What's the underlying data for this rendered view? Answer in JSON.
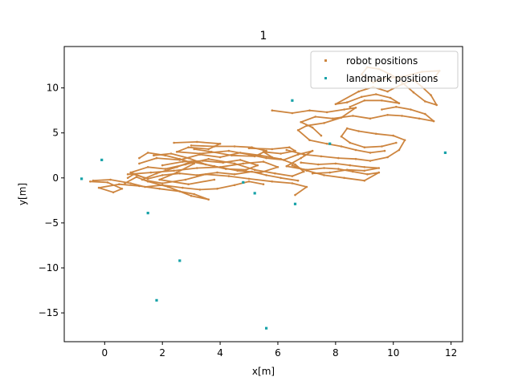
{
  "chart_data": {
    "type": "scatter",
    "title": "1",
    "xlabel": "x[m]",
    "ylabel": "y[m]",
    "xlim": [
      -1.4,
      12.4
    ],
    "ylim": [
      -18.2,
      14.6
    ],
    "xticks": [
      0,
      2,
      4,
      6,
      8,
      10,
      12
    ],
    "yticks": [
      -15,
      -10,
      -5,
      0,
      5,
      10
    ],
    "grid": false,
    "legend_position": "top-right",
    "series": [
      {
        "name": "robot positions",
        "color": "#cd853f",
        "marker": "dot",
        "paths": [
          [
            [
              -0.5,
              -0.4
            ],
            [
              0.1,
              -0.5
            ],
            [
              0.6,
              -1.2
            ],
            [
              0.3,
              -1.6
            ],
            [
              -0.2,
              -1.1
            ],
            [
              0.5,
              -0.7
            ],
            [
              1.2,
              -0.9
            ],
            [
              1.9,
              -1.2
            ],
            [
              2.6,
              -1.5
            ],
            [
              3.1,
              -1.8
            ],
            [
              3.6,
              -2.4
            ],
            [
              3.0,
              -2.0
            ],
            [
              2.2,
              -1.0
            ],
            [
              1.5,
              -0.4
            ],
            [
              1.1,
              0.1
            ],
            [
              0.7,
              -0.6
            ]
          ],
          [
            [
              0.8,
              0.4
            ],
            [
              1.6,
              0.6
            ],
            [
              2.4,
              0.8
            ],
            [
              3.2,
              1.1
            ],
            [
              4.0,
              1.2
            ],
            [
              4.8,
              1.6
            ],
            [
              5.5,
              1.8
            ],
            [
              6.0,
              1.2
            ],
            [
              5.4,
              0.6
            ],
            [
              4.6,
              0.8
            ],
            [
              3.8,
              1.3
            ],
            [
              3.0,
              1.8
            ],
            [
              2.5,
              1.2
            ],
            [
              1.8,
              0.5
            ],
            [
              1.3,
              -0.2
            ],
            [
              2.0,
              -0.6
            ],
            [
              2.8,
              -0.2
            ],
            [
              3.5,
              0.4
            ],
            [
              4.3,
              0.2
            ],
            [
              5.0,
              -0.1
            ],
            [
              5.8,
              -0.4
            ],
            [
              6.5,
              -0.6
            ],
            [
              7.0,
              -1.0
            ],
            [
              6.6,
              -1.9
            ]
          ],
          [
            [
              1.2,
              1.6
            ],
            [
              1.8,
              2.2
            ],
            [
              2.6,
              2.0
            ],
            [
              3.3,
              2.6
            ],
            [
              4.0,
              2.3
            ],
            [
              4.7,
              2.8
            ],
            [
              5.4,
              2.5
            ],
            [
              6.1,
              2.1
            ],
            [
              6.6,
              1.5
            ],
            [
              6.9,
              0.7
            ],
            [
              6.5,
              0.2
            ],
            [
              5.9,
              0.5
            ],
            [
              5.2,
              0.9
            ],
            [
              4.5,
              1.6
            ],
            [
              3.6,
              2.1
            ],
            [
              2.8,
              1.5
            ],
            [
              2.1,
              1.0
            ],
            [
              1.5,
              1.2
            ],
            [
              0.9,
              0.6
            ],
            [
              1.4,
              0.0
            ]
          ],
          [
            [
              1.2,
              2.2
            ],
            [
              1.5,
              2.8
            ],
            [
              2.1,
              2.5
            ],
            [
              2.6,
              2.1
            ],
            [
              3.1,
              1.6
            ],
            [
              2.5,
              0.6
            ],
            [
              1.9,
              -0.2
            ],
            [
              2.9,
              -0.7
            ],
            [
              3.8,
              -0.2
            ]
          ],
          [
            [
              2.4,
              3.9
            ],
            [
              3.2,
              4.0
            ],
            [
              4.0,
              3.8
            ],
            [
              3.6,
              3.2
            ],
            [
              2.9,
              3.4
            ],
            [
              2.5,
              2.9
            ],
            [
              3.3,
              2.7
            ],
            [
              4.3,
              3.0
            ],
            [
              5.0,
              2.6
            ],
            [
              5.6,
              2.2
            ],
            [
              6.2,
              2.0
            ],
            [
              6.7,
              2.6
            ],
            [
              7.2,
              3.0
            ],
            [
              6.8,
              2.2
            ],
            [
              6.3,
              1.3
            ],
            [
              7.0,
              0.9
            ],
            [
              7.6,
              1.1
            ],
            [
              8.1,
              1.0
            ],
            [
              8.6,
              0.7
            ],
            [
              9.1,
              0.4
            ],
            [
              9.5,
              0.6
            ],
            [
              9.0,
              -0.3
            ],
            [
              8.3,
              0.0
            ],
            [
              7.6,
              0.3
            ],
            [
              7.0,
              0.8
            ],
            [
              6.5,
              1.4
            ]
          ],
          [
            [
              5.0,
              3.3
            ],
            [
              5.8,
              3.2
            ],
            [
              6.4,
              3.4
            ],
            [
              6.6,
              3.0
            ],
            [
              6.1,
              2.7
            ],
            [
              5.5,
              2.9
            ],
            [
              5.8,
              2.3
            ]
          ],
          [
            [
              6.3,
              3.1
            ],
            [
              6.9,
              2.6
            ],
            [
              7.5,
              2.4
            ],
            [
              8.1,
              2.2
            ],
            [
              8.7,
              2.1
            ],
            [
              9.2,
              1.9
            ],
            [
              9.8,
              2.3
            ],
            [
              10.2,
              3.1
            ],
            [
              10.4,
              4.2
            ],
            [
              10.0,
              4.7
            ],
            [
              9.4,
              4.9
            ],
            [
              8.8,
              5.2
            ],
            [
              8.4,
              5.5
            ],
            [
              8.2,
              4.6
            ],
            [
              8.5,
              3.9
            ],
            [
              9.0,
              3.4
            ],
            [
              9.6,
              3.5
            ],
            [
              10.1,
              3.9
            ]
          ],
          [
            [
              7.5,
              4.7
            ],
            [
              7.2,
              5.6
            ],
            [
              6.8,
              6.2
            ],
            [
              7.3,
              6.8
            ],
            [
              7.9,
              6.6
            ],
            [
              8.6,
              6.9
            ],
            [
              9.2,
              6.6
            ],
            [
              9.8,
              7.0
            ],
            [
              10.3,
              6.9
            ],
            [
              10.9,
              6.6
            ],
            [
              11.4,
              6.3
            ],
            [
              11.1,
              7.1
            ],
            [
              10.6,
              7.6
            ],
            [
              10.1,
              7.9
            ],
            [
              9.6,
              7.6
            ]
          ],
          [
            [
              5.8,
              7.5
            ],
            [
              6.5,
              7.2
            ],
            [
              7.1,
              7.5
            ],
            [
              7.7,
              7.3
            ],
            [
              8.3,
              7.6
            ],
            [
              8.7,
              7.8
            ],
            [
              8.2,
              6.7
            ],
            [
              7.6,
              6.1
            ],
            [
              7.0,
              5.8
            ],
            [
              6.7,
              5.3
            ],
            [
              7.1,
              4.2
            ],
            [
              7.7,
              3.8
            ],
            [
              8.2,
              3.5
            ],
            [
              8.7,
              3.1
            ],
            [
              9.2,
              2.8
            ],
            [
              9.7,
              3.0
            ]
          ],
          [
            [
              8.5,
              7.9
            ],
            [
              9.0,
              8.6
            ],
            [
              9.6,
              8.6
            ],
            [
              10.2,
              8.3
            ],
            [
              9.9,
              8.9
            ],
            [
              9.4,
              9.3
            ],
            [
              8.9,
              9.0
            ],
            [
              8.4,
              8.4
            ],
            [
              8.0,
              8.2
            ],
            [
              8.8,
              9.6
            ],
            [
              9.3,
              10.1
            ],
            [
              9.8,
              9.6
            ],
            [
              10.3,
              10.4
            ],
            [
              10.7,
              10.9
            ],
            [
              11.0,
              10.1
            ],
            [
              11.3,
              9.2
            ],
            [
              11.5,
              8.1
            ],
            [
              11.1,
              8.5
            ],
            [
              10.7,
              9.5
            ],
            [
              10.2,
              10.9
            ],
            [
              9.9,
              11.5
            ],
            [
              9.5,
              12.1
            ],
            [
              9.1,
              12.3
            ],
            [
              8.9,
              11.5
            ],
            [
              9.3,
              10.6
            ],
            [
              9.6,
              11.0
            ],
            [
              10.4,
              11.3
            ],
            [
              11.0,
              11.8
            ],
            [
              11.6,
              11.9
            ],
            [
              11.4,
              11.0
            ]
          ],
          [
            [
              0.8,
              0.0
            ],
            [
              1.0,
              0.4
            ],
            [
              1.5,
              -0.1
            ],
            [
              2.0,
              0.3
            ],
            [
              2.6,
              0.5
            ],
            [
              3.2,
              0.3
            ],
            [
              3.9,
              0.6
            ],
            [
              4.5,
              0.4
            ],
            [
              5.1,
              0.7
            ],
            [
              5.6,
              0.3
            ],
            [
              6.1,
              0.0
            ],
            [
              6.7,
              -0.3
            ]
          ],
          [
            [
              -0.4,
              -0.3
            ],
            [
              0.2,
              -0.2
            ],
            [
              0.9,
              -0.6
            ],
            [
              1.4,
              -1.0
            ],
            [
              2.0,
              -0.8
            ],
            [
              2.7,
              -1.1
            ],
            [
              3.3,
              -1.3
            ],
            [
              3.9,
              -1.2
            ],
            [
              4.5,
              -0.8
            ],
            [
              5.0,
              -0.4
            ],
            [
              5.5,
              -0.7
            ]
          ],
          [
            [
              2.0,
              1.4
            ],
            [
              2.7,
              1.8
            ],
            [
              3.4,
              1.9
            ],
            [
              4.1,
              1.7
            ],
            [
              4.7,
              2.0
            ],
            [
              5.3,
              1.4
            ],
            [
              4.9,
              0.9
            ],
            [
              4.2,
              1.0
            ],
            [
              3.5,
              1.5
            ],
            [
              2.9,
              2.2
            ],
            [
              2.3,
              2.7
            ],
            [
              1.7,
              2.5
            ]
          ],
          [
            [
              3.0,
              3.6
            ],
            [
              3.8,
              3.5
            ],
            [
              4.5,
              3.5
            ],
            [
              5.1,
              3.4
            ],
            [
              5.6,
              3.0
            ],
            [
              5.2,
              2.4
            ],
            [
              4.4,
              2.5
            ],
            [
              3.7,
              2.9
            ],
            [
              3.1,
              3.2
            ]
          ],
          [
            [
              6.8,
              1.7
            ],
            [
              7.4,
              1.5
            ],
            [
              8.0,
              1.6
            ],
            [
              8.5,
              1.4
            ],
            [
              9.0,
              1.2
            ],
            [
              9.5,
              1.1
            ],
            [
              9.0,
              0.8
            ],
            [
              8.4,
              0.9
            ],
            [
              7.8,
              0.6
            ],
            [
              7.2,
              0.5
            ]
          ]
        ]
      },
      {
        "name": "landmark positions",
        "color": "#17a2a8",
        "marker": "square",
        "points": [
          [
            -0.8,
            -0.1
          ],
          [
            -0.1,
            2.0
          ],
          [
            1.5,
            -3.9
          ],
          [
            2.6,
            -9.2
          ],
          [
            1.8,
            -13.6
          ],
          [
            4.8,
            -0.5
          ],
          [
            5.2,
            -1.7
          ],
          [
            5.6,
            -16.7
          ],
          [
            6.5,
            8.6
          ],
          [
            6.6,
            -2.9
          ],
          [
            7.8,
            3.8
          ],
          [
            11.8,
            2.8
          ]
        ]
      }
    ]
  }
}
